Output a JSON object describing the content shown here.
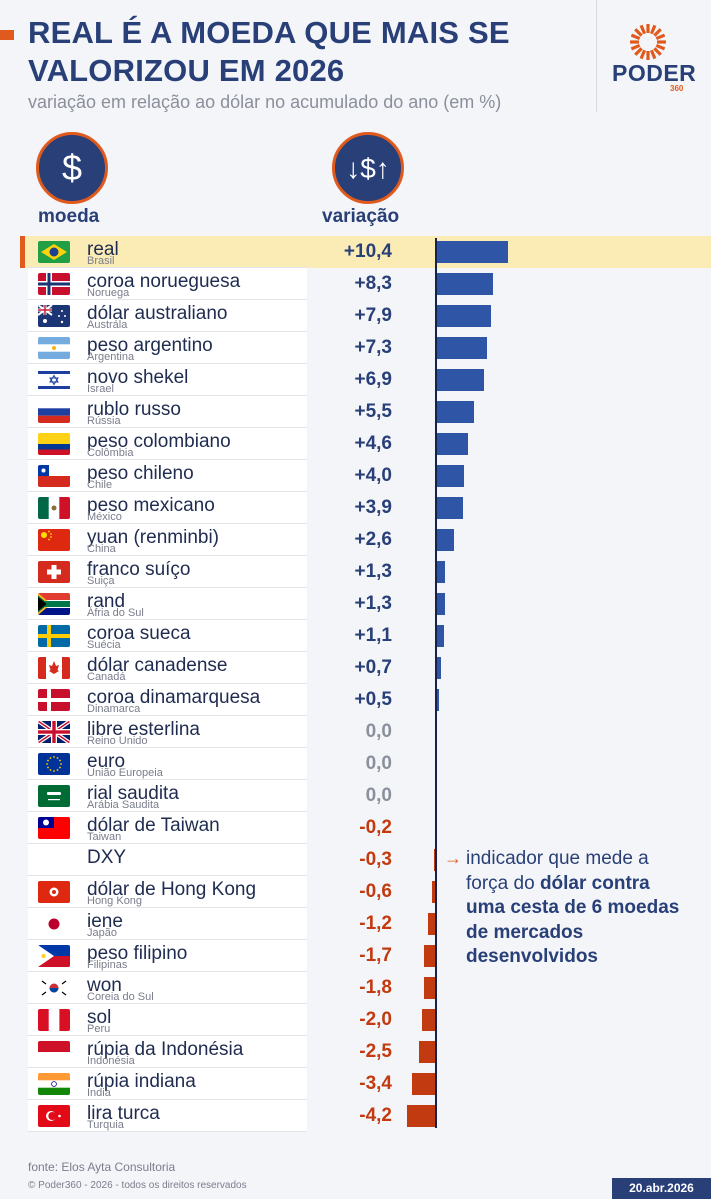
{
  "header": {
    "title": "REAL É A MOEDA QUE MAIS SE VALORIZOU EM 2026",
    "subtitle": "variação em relação ao dólar no acumulado do ano (em %)"
  },
  "logo": {
    "name": "PODER",
    "number": "360"
  },
  "columns": {
    "currency": "moeda",
    "variation": "variação"
  },
  "colors": {
    "positive": "#2f56a6",
    "neutral": "#8a919c",
    "negative": "#c23a10",
    "accent": "#e05a1e",
    "brand": "#283f78",
    "highlight": "#fbebb5"
  },
  "rows": [
    {
      "name": "real",
      "country": "Brasil",
      "value": 10.4,
      "label": "+10,4",
      "flag": "flag-brazil"
    },
    {
      "name": "coroa norueguesa",
      "country": "Noruega",
      "value": 8.3,
      "label": "+8,3",
      "flag": "flag-norway"
    },
    {
      "name": "dólar australiano",
      "country": "Austrála",
      "value": 7.9,
      "label": "+7,9",
      "flag": "flag-australia"
    },
    {
      "name": "peso argentino",
      "country": "Argentina",
      "value": 7.3,
      "label": "+7,3",
      "flag": "flag-argentina"
    },
    {
      "name": "novo shekel",
      "country": "Israel",
      "value": 6.9,
      "label": "+6,9",
      "flag": "flag-israel"
    },
    {
      "name": "rublo russo",
      "country": "Rússia",
      "value": 5.5,
      "label": "+5,5",
      "flag": "flag-russia"
    },
    {
      "name": "peso colombiano",
      "country": "Colômbia",
      "value": 4.6,
      "label": "+4,6",
      "flag": "flag-colombia"
    },
    {
      "name": "peso chileno",
      "country": "Chile",
      "value": 4.0,
      "label": "+4,0",
      "flag": "flag-chile"
    },
    {
      "name": "peso mexicano",
      "country": "México",
      "value": 3.9,
      "label": "+3,9",
      "flag": "flag-mexico"
    },
    {
      "name": "yuan (renminbi)",
      "country": "China",
      "value": 2.6,
      "label": "+2,6",
      "flag": "flag-china"
    },
    {
      "name": "franco suíço",
      "country": "Suiça",
      "value": 1.3,
      "label": "+1,3",
      "flag": "flag-switzerland"
    },
    {
      "name": "rand",
      "country": "Áfria do Sul",
      "value": 1.3,
      "label": "+1,3",
      "flag": "flag-south-africa"
    },
    {
      "name": "coroa sueca",
      "country": "Suécia",
      "value": 1.1,
      "label": "+1,1",
      "flag": "flag-sweden"
    },
    {
      "name": "dólar canadense",
      "country": "Canadá",
      "value": 0.7,
      "label": "+0,7",
      "flag": "flag-canada"
    },
    {
      "name": "coroa dinamarquesa",
      "country": "Dinamarca",
      "value": 0.5,
      "label": "+0,5",
      "flag": "flag-denmark"
    },
    {
      "name": "libre esterlina",
      "country": "Reino Unido",
      "value": 0.0,
      "label": "0,0",
      "flag": "flag-united-kingdom"
    },
    {
      "name": "euro",
      "country": "União Europeia",
      "value": 0.0,
      "label": "0,0",
      "flag": "flag-european-union"
    },
    {
      "name": "rial saudita",
      "country": "Arábia Saudita",
      "value": 0.0,
      "label": "0,0",
      "flag": "flag-saudi-arabia"
    },
    {
      "name": "dólar de Taiwan",
      "country": "Taiwan",
      "value": -0.2,
      "label": "-0,2",
      "flag": "flag-taiwan"
    },
    {
      "name": "DXY",
      "country": "",
      "value": -0.3,
      "label": "-0,3",
      "flag": ""
    },
    {
      "name": "dólar de Hong Kong",
      "country": "Hong Kong",
      "value": -0.6,
      "label": "-0,6",
      "flag": "flag-hong-kong"
    },
    {
      "name": "iene",
      "country": "Japão",
      "value": -1.2,
      "label": "-1,2",
      "flag": "flag-japan"
    },
    {
      "name": "peso filipino",
      "country": "Filipinas",
      "value": -1.7,
      "label": "-1,7",
      "flag": "flag-philippines"
    },
    {
      "name": "won",
      "country": "Coreia do Sul",
      "value": -1.8,
      "label": "-1,8",
      "flag": "flag-south-korea"
    },
    {
      "name": "sol",
      "country": "Peru",
      "value": -2.0,
      "label": "-2,0",
      "flag": "flag-peru"
    },
    {
      "name": "rúpia da Indonésia",
      "country": "Indonésia",
      "value": -2.5,
      "label": "-2,5",
      "flag": "flag-indonesia"
    },
    {
      "name": "rúpia indiana",
      "country": "India",
      "value": -3.4,
      "label": "-3,4",
      "flag": "flag-india"
    },
    {
      "name": "lira turca",
      "country": "Turquia",
      "value": -4.2,
      "label": "-4,2",
      "flag": "flag-turkey"
    }
  ],
  "chart_data": {
    "type": "bar",
    "orientation": "horizontal",
    "title": "REAL É A MOEDA QUE MAIS SE VALORIZOU EM 2026",
    "subtitle": "variação em relação ao dólar no acumulado do ano (em %)",
    "categories": [
      "real",
      "coroa norueguesa",
      "dólar australiano",
      "peso argentino",
      "novo shekel",
      "rublo russo",
      "peso colombiano",
      "peso chileno",
      "peso mexicano",
      "yuan (renminbi)",
      "franco suíço",
      "rand",
      "coroa sueca",
      "dólar canadense",
      "coroa dinamarquesa",
      "libre esterlina",
      "euro",
      "rial saudita",
      "dólar de Taiwan",
      "DXY",
      "dólar de Hong Kong",
      "iene",
      "peso filipino",
      "won",
      "sol",
      "rúpia da Indonésia",
      "rúpia indiana",
      "lira turca"
    ],
    "values": [
      10.4,
      8.3,
      7.9,
      7.3,
      6.9,
      5.5,
      4.6,
      4.0,
      3.9,
      2.6,
      1.3,
      1.3,
      1.1,
      0.7,
      0.5,
      0.0,
      0.0,
      0.0,
      -0.2,
      -0.3,
      -0.6,
      -1.2,
      -1.7,
      -1.8,
      -2.0,
      -2.5,
      -3.4,
      -4.2
    ],
    "xlim": [
      -4.2,
      10.4
    ],
    "grid": false,
    "highlight": "real"
  },
  "note": {
    "arrow": "→",
    "text_plain": "indicador que mede a força do ",
    "text_bold": "dólar contra uma cesta de 6 moedas de mercados desenvolvidos"
  },
  "footer": {
    "source": "fonte: Elos Ayta Consultoria",
    "copyright": "© Poder360 - 2026 - todos os direitos reservados",
    "date": "20.abr.2026"
  }
}
